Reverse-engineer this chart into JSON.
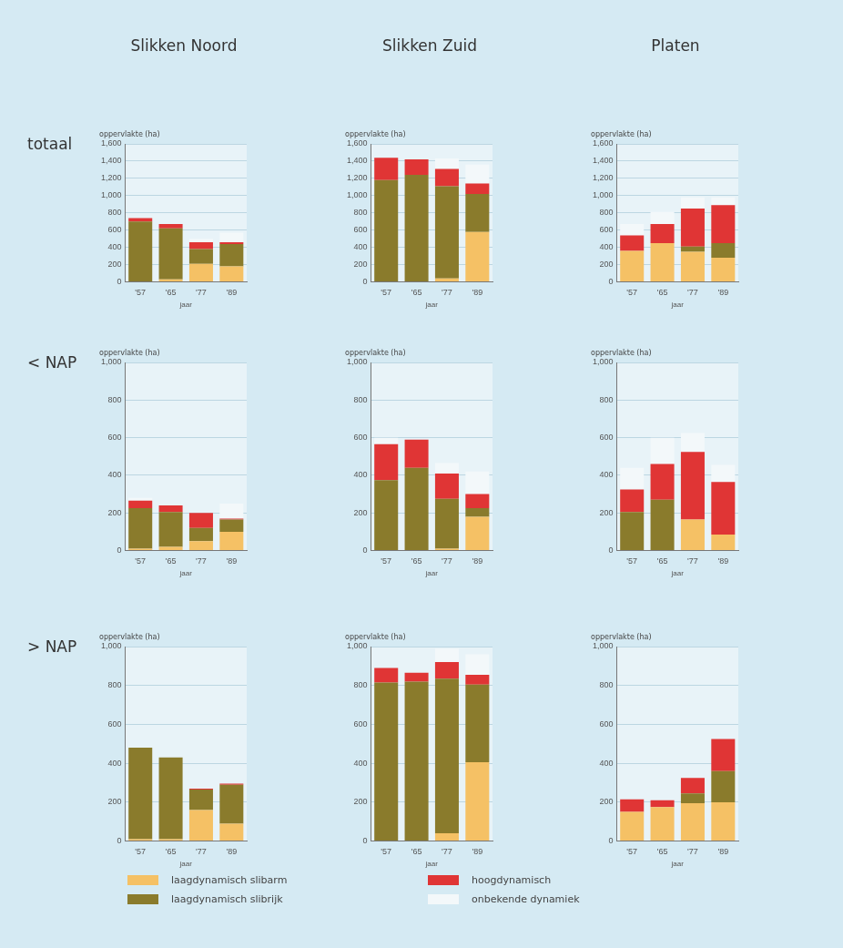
{
  "chart_data": [
    {
      "type": "bar",
      "stacked": true,
      "title": "Slikken Noord",
      "annotations": [
        "totaal"
      ],
      "xlabel": "jaar",
      "ylabel": "oppervlakte (ha)",
      "categories": [
        "'57",
        "'65",
        "'77",
        "'89"
      ],
      "ylim": [
        0,
        1600
      ],
      "yticks": [
        0,
        200,
        400,
        600,
        800,
        {
          "value": 1000,
          "label": "1,000"
        },
        {
          "value": 1200,
          "label": "1,200"
        },
        {
          "value": 1400,
          "label": "1,400"
        },
        {
          "value": 1600,
          "label": "1,600"
        }
      ],
      "grid": "y",
      "series": [
        {
          "color": "#f5c165",
          "values": [
            null,
            30,
            210,
            180
          ]
        },
        {
          "color": "#8a7b2c",
          "values": [
            700,
            590,
            170,
            260
          ]
        },
        {
          "color": "#e03535",
          "values": [
            40,
            50,
            80,
            20
          ]
        },
        {
          "color": "#f3f8fa",
          "values": [
            null,
            null,
            40,
            110
          ]
        }
      ]
    },
    {
      "type": "bar",
      "stacked": true,
      "title": "Slikken Zuid",
      "xlabel": "jaar",
      "ylabel": "oppervlakte (ha)",
      "categories": [
        "'57",
        "'65",
        "'77",
        "'89"
      ],
      "ylim": [
        0,
        1600
      ],
      "yticks": [
        0,
        200,
        400,
        600,
        800,
        {
          "value": 1000,
          "label": "1,000"
        },
        {
          "value": 1200,
          "label": "1,200"
        },
        {
          "value": 1400,
          "label": "1,400"
        },
        {
          "value": 1600,
          "label": "1,600"
        }
      ],
      "grid": "y",
      "series": [
        {
          "color": "#f5c165",
          "values": [
            null,
            null,
            40,
            580
          ]
        },
        {
          "color": "#8a7b2c",
          "values": [
            1180,
            1240,
            1070,
            440
          ]
        },
        {
          "color": "#e03535",
          "values": [
            260,
            180,
            200,
            120
          ]
        },
        {
          "color": "#f3f8fa",
          "values": [
            null,
            null,
            120,
            220
          ]
        }
      ]
    },
    {
      "type": "bar",
      "stacked": true,
      "title": "Platen",
      "xlabel": "jaar",
      "ylabel": "oppervlakte (ha)",
      "categories": [
        "'57",
        "'65",
        "'77",
        "'89"
      ],
      "ylim": [
        0,
        1600
      ],
      "yticks": [
        0,
        200,
        400,
        600,
        800,
        {
          "value": 1000,
          "label": "1,000"
        },
        {
          "value": 1200,
          "label": "1,200"
        },
        {
          "value": 1400,
          "label": "1,400"
        },
        {
          "value": 1600,
          "label": "1,600"
        }
      ],
      "grid": "y",
      "series": [
        {
          "color": "#f5c165",
          "values": [
            360,
            450,
            350,
            280
          ]
        },
        {
          "color": "#8a7b2c",
          "values": [
            null,
            null,
            60,
            170
          ]
        },
        {
          "color": "#e03535",
          "values": [
            180,
            220,
            440,
            440
          ]
        },
        {
          "color": "#f3f8fa",
          "values": [
            130,
            140,
            130,
            90
          ]
        }
      ]
    },
    {
      "type": "bar",
      "stacked": true,
      "annotations": [
        "< NAP"
      ],
      "xlabel": "jaar",
      "ylabel": "oppervlakte (ha)",
      "categories": [
        "'57",
        "'65",
        "'77",
        "'89"
      ],
      "ylim": [
        0,
        1000
      ],
      "yticks": [
        0,
        200,
        400,
        600,
        800,
        {
          "value": 1000,
          "label": "1,000"
        }
      ],
      "grid": "y",
      "series": [
        {
          "color": "#f5c165",
          "values": [
            10,
            20,
            50,
            100
          ]
        },
        {
          "color": "#8a7b2c",
          "values": [
            215,
            185,
            70,
            65
          ]
        },
        {
          "color": "#e03535",
          "values": [
            40,
            35,
            80,
            5
          ]
        },
        {
          "color": "#f3f8fa",
          "values": [
            15,
            null,
            null,
            80
          ]
        }
      ]
    },
    {
      "type": "bar",
      "stacked": true,
      "xlabel": "jaar",
      "ylabel": "oppervlakte (ha)",
      "categories": [
        "'57",
        "'65",
        "'77",
        "'89"
      ],
      "ylim": [
        0,
        1000
      ],
      "yticks": [
        0,
        200,
        400,
        600,
        800,
        {
          "value": 1000,
          "label": "1,000"
        }
      ],
      "grid": "y",
      "series": [
        {
          "color": "#f5c165",
          "values": [
            null,
            null,
            10,
            180
          ]
        },
        {
          "color": "#8a7b2c",
          "values": [
            375,
            440,
            265,
            45
          ]
        },
        {
          "color": "#e03535",
          "values": [
            190,
            150,
            135,
            75
          ]
        },
        {
          "color": "#f3f8fa",
          "values": [
            35,
            null,
            55,
            120
          ]
        }
      ]
    },
    {
      "type": "bar",
      "stacked": true,
      "xlabel": "jaar",
      "ylabel": "oppervlakte (ha)",
      "categories": [
        "'57",
        "'65",
        "'77",
        "'89"
      ],
      "ylim": [
        0,
        1000
      ],
      "yticks": [
        0,
        200,
        400,
        600,
        800,
        {
          "value": 1000,
          "label": "1,000"
        }
      ],
      "grid": "y",
      "series": [
        {
          "color": "#f5c165",
          "values": [
            null,
            null,
            165,
            85
          ]
        },
        {
          "color": "#8a7b2c",
          "values": [
            205,
            270,
            null,
            null
          ]
        },
        {
          "color": "#e03535",
          "values": [
            120,
            190,
            360,
            280
          ]
        },
        {
          "color": "#f3f8fa",
          "values": [
            115,
            140,
            100,
            90
          ]
        }
      ]
    },
    {
      "type": "bar",
      "stacked": true,
      "annotations": [
        "> NAP"
      ],
      "xlabel": "jaar",
      "ylabel": "oppervlakte (ha)",
      "categories": [
        "'57",
        "'65",
        "'77",
        "'89"
      ],
      "ylim": [
        0,
        1000
      ],
      "yticks": [
        0,
        200,
        400,
        600,
        800,
        {
          "value": 1000,
          "label": "1,000"
        }
      ],
      "grid": "y",
      "legend": "bottom",
      "series": [
        {
          "name": "laagdynamisch slibarm",
          "color": "#f5c165",
          "values": [
            10,
            10,
            160,
            90
          ]
        },
        {
          "name": "laagdynamisch slibrijk",
          "color": "#8a7b2c",
          "values": [
            470,
            420,
            105,
            200
          ]
        },
        {
          "name": "hoogdynamisch",
          "color": "#e03535",
          "values": [
            null,
            null,
            5,
            5
          ]
        },
        {
          "name": "onbekende dynamiek",
          "color": "#f3f8fa",
          "values": [
            null,
            null,
            null,
            null
          ]
        }
      ]
    },
    {
      "type": "bar",
      "stacked": true,
      "xlabel": "jaar",
      "ylabel": "oppervlakte (ha)",
      "categories": [
        "'57",
        "'65",
        "'77",
        "'89"
      ],
      "ylim": [
        0,
        1000
      ],
      "yticks": [
        0,
        200,
        400,
        600,
        800,
        {
          "value": 1000,
          "label": "1,000"
        }
      ],
      "grid": "y",
      "series": [
        {
          "color": "#f5c165",
          "values": [
            null,
            null,
            40,
            405
          ]
        },
        {
          "color": "#8a7b2c",
          "values": [
            815,
            820,
            795,
            400
          ]
        },
        {
          "color": "#e03535",
          "values": [
            75,
            45,
            85,
            50
          ]
        },
        {
          "color": "#f3f8fa",
          "values": [
            null,
            null,
            70,
            105
          ]
        }
      ]
    },
    {
      "type": "bar",
      "stacked": true,
      "xlabel": "jaar",
      "ylabel": "oppervlakte (ha)",
      "categories": [
        "'57",
        "'65",
        "'77",
        "'89"
      ],
      "ylim": [
        0,
        1000
      ],
      "yticks": [
        0,
        200,
        400,
        600,
        800,
        {
          "value": 1000,
          "label": "1,000"
        }
      ],
      "grid": "y",
      "series": [
        {
          "color": "#f5c165",
          "values": [
            150,
            175,
            195,
            200
          ]
        },
        {
          "color": "#8a7b2c",
          "values": [
            null,
            null,
            50,
            160
          ]
        },
        {
          "color": "#e03535",
          "values": [
            65,
            35,
            80,
            165
          ]
        },
        {
          "color": "#f3f8fa",
          "values": [
            null,
            null,
            null,
            null
          ]
        }
      ]
    }
  ]
}
